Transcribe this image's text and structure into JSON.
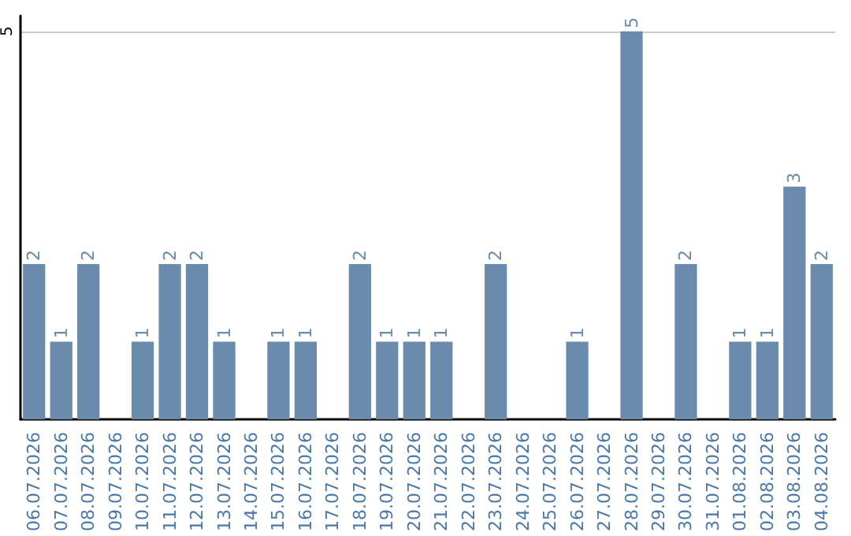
{
  "chart_data": {
    "type": "bar",
    "categories": [
      "06.07.2026",
      "07.07.2026",
      "08.07.2026",
      "09.07.2026",
      "10.07.2026",
      "11.07.2026",
      "12.07.2026",
      "13.07.2026",
      "14.07.2026",
      "15.07.2026",
      "16.07.2026",
      "17.07.2026",
      "18.07.2026",
      "19.07.2026",
      "20.07.2026",
      "21.07.2026",
      "22.07.2026",
      "23.07.2026",
      "24.07.2026",
      "25.07.2026",
      "26.07.2026",
      "27.07.2026",
      "28.07.2026",
      "29.07.2026",
      "30.07.2026",
      "31.07.2026",
      "01.08.2026",
      "02.08.2026",
      "03.08.2026",
      "04.08.2026"
    ],
    "values": [
      2,
      1,
      2,
      0,
      1,
      2,
      2,
      1,
      0,
      1,
      1,
      0,
      2,
      1,
      1,
      1,
      0,
      2,
      0,
      0,
      1,
      0,
      5,
      0,
      2,
      0,
      1,
      1,
      3,
      2
    ],
    "value_labels": [
      "2",
      "1",
      "2",
      null,
      "1",
      "2",
      "2",
      "1",
      null,
      "1",
      "1",
      null,
      "2",
      "1",
      "1",
      "1",
      null,
      "2",
      null,
      null,
      "1",
      null,
      "5",
      null,
      "2",
      null,
      "1",
      "1",
      "3",
      "2"
    ],
    "color": "#6a8bab",
    "ylim": [
      0,
      5.2
    ],
    "yticks": [
      5
    ],
    "grid": "y"
  }
}
